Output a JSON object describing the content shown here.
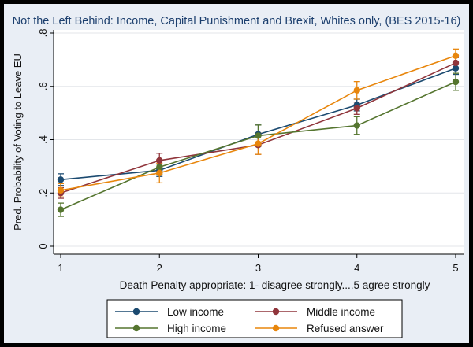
{
  "chart_data": {
    "type": "line",
    "title": "Not the Left Behind: Income, Capital Punishment and Brexit, Whites only, (BES 2015-16)",
    "xlabel": "Death Penalty appropriate: 1- disagree strongly....5 agree strongly",
    "ylabel": "Pred. Probability of Voting to Leave EU",
    "x": [
      1,
      2,
      3,
      4,
      5
    ],
    "xticks": [
      "1",
      "2",
      "3",
      "4",
      "5"
    ],
    "yticks": [
      0,
      0.2,
      0.4,
      0.6,
      0.8
    ],
    "ytick_labels": [
      "0",
      ".2",
      ".4",
      ".6",
      ".8"
    ],
    "ylim": [
      0,
      0.8
    ],
    "grid": true,
    "legend_position": "bottom",
    "series": [
      {
        "name": "Low income",
        "color": "#1b4a70",
        "values": [
          0.25,
          0.285,
          0.42,
          0.53,
          0.668
        ],
        "ci_low": [
          0.228,
          0.262,
          0.385,
          0.508,
          0.645
        ],
        "ci_high": [
          0.272,
          0.308,
          0.455,
          0.552,
          0.691
        ]
      },
      {
        "name": "Middle income",
        "color": "#90353b",
        "values": [
          0.2,
          0.322,
          0.38,
          0.518,
          0.688
        ],
        "ci_low": [
          0.18,
          0.295,
          0.345,
          0.495,
          0.668
        ],
        "ci_high": [
          0.22,
          0.349,
          0.415,
          0.541,
          0.708
        ]
      },
      {
        "name": "High income",
        "color": "#55752f",
        "values": [
          0.137,
          0.297,
          0.415,
          0.453,
          0.617
        ],
        "ci_low": [
          0.112,
          0.27,
          0.375,
          0.42,
          0.585
        ],
        "ci_high": [
          0.162,
          0.324,
          0.455,
          0.486,
          0.649
        ]
      },
      {
        "name": "Refused answer",
        "color": "#e8860c",
        "values": [
          0.21,
          0.275,
          0.385,
          0.585,
          0.715
        ],
        "ci_low": [
          0.185,
          0.238,
          0.345,
          0.552,
          0.69
        ],
        "ci_high": [
          0.235,
          0.312,
          0.425,
          0.618,
          0.74
        ]
      }
    ]
  }
}
